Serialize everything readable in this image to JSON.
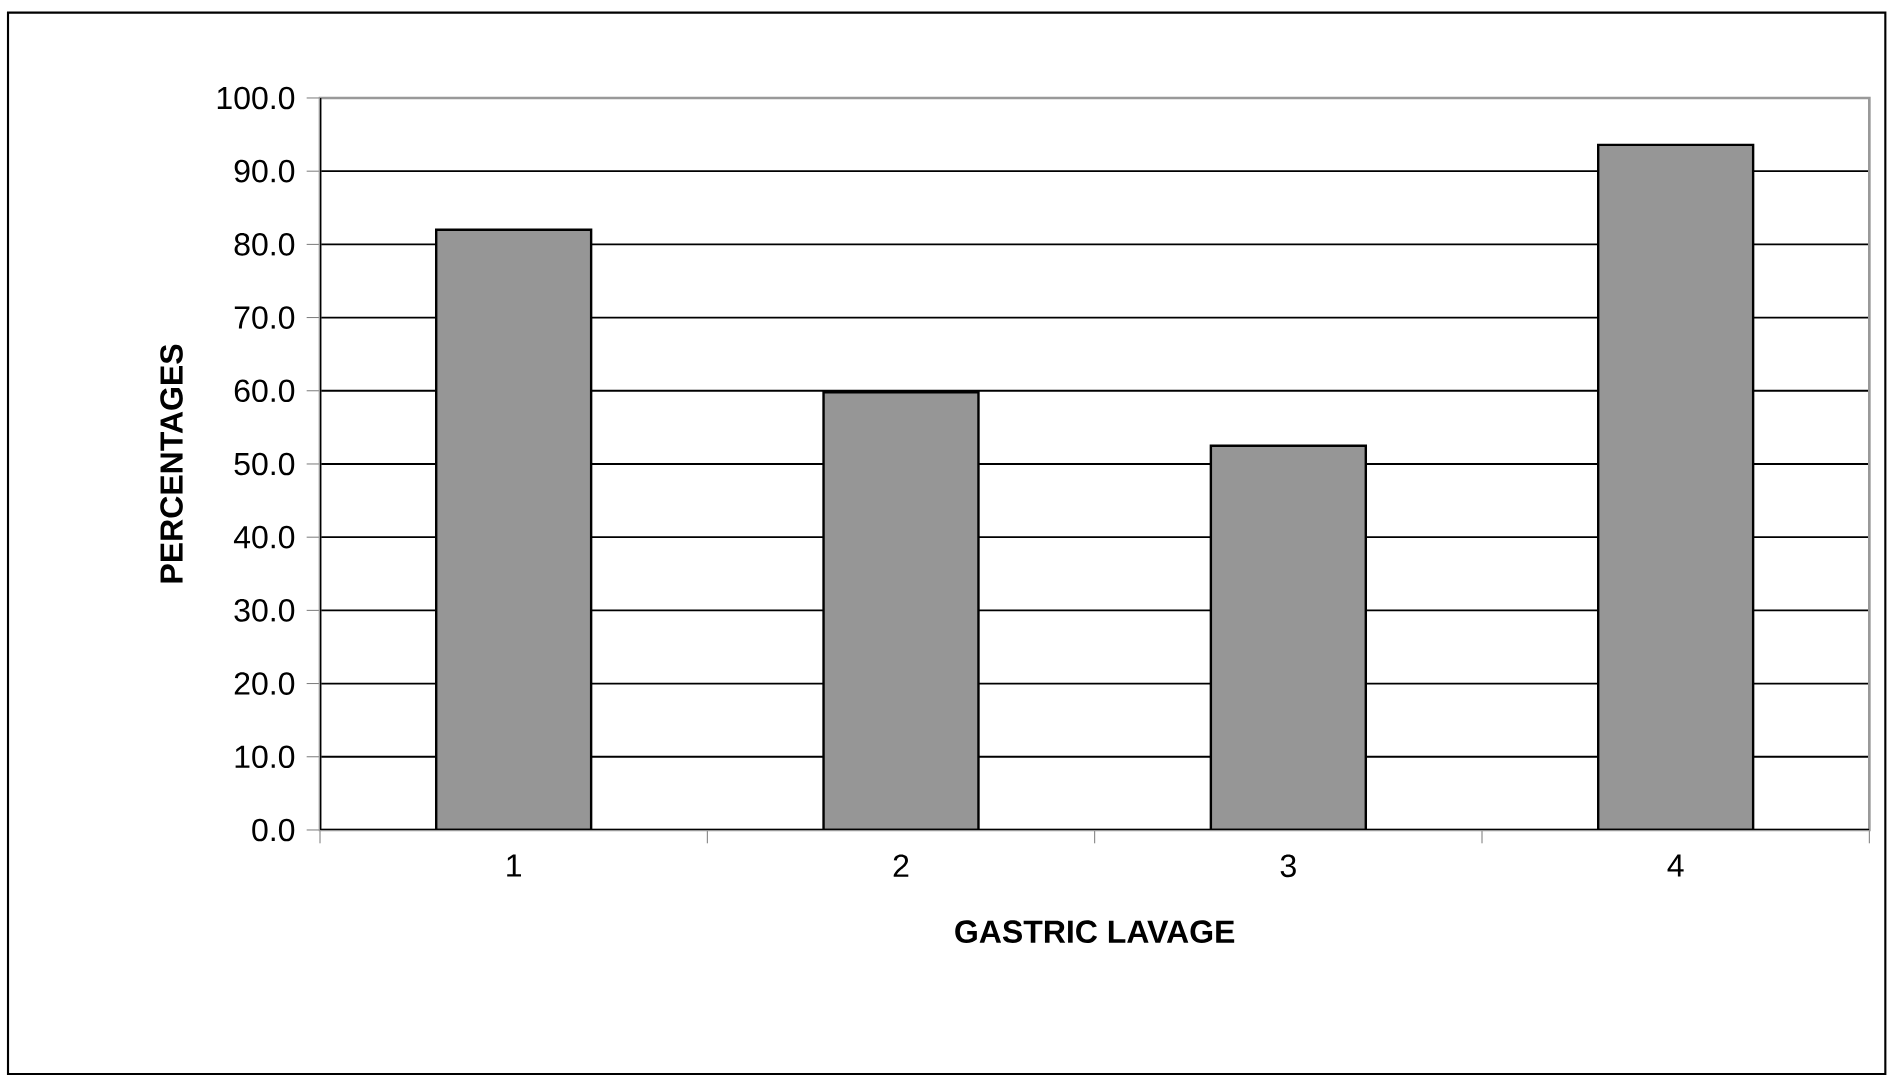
{
  "chart_data": {
    "type": "bar",
    "xlabel": "GASTRIC LAVAGE",
    "ylabel": "PERCENTAGES",
    "categories": [
      "1",
      "2",
      "3",
      "4"
    ],
    "values": [
      82.0,
      59.8,
      52.5,
      93.6
    ],
    "color": "#969696",
    "ylim": [
      0,
      100
    ],
    "yticks": [
      {
        "value": 0,
        "label": "0.0"
      },
      {
        "value": 10,
        "label": "10.0"
      },
      {
        "value": 20,
        "label": "20.0"
      },
      {
        "value": 30,
        "label": "30.0"
      },
      {
        "value": 40,
        "label": "40.0"
      },
      {
        "value": 50,
        "label": "50.0"
      },
      {
        "value": 60,
        "label": "60.0"
      },
      {
        "value": 70,
        "label": "70.0"
      },
      {
        "value": 80,
        "label": "80.0"
      },
      {
        "value": 90,
        "label": "90.0"
      },
      {
        "value": 100,
        "label": "100.0"
      }
    ],
    "grid": "y"
  }
}
